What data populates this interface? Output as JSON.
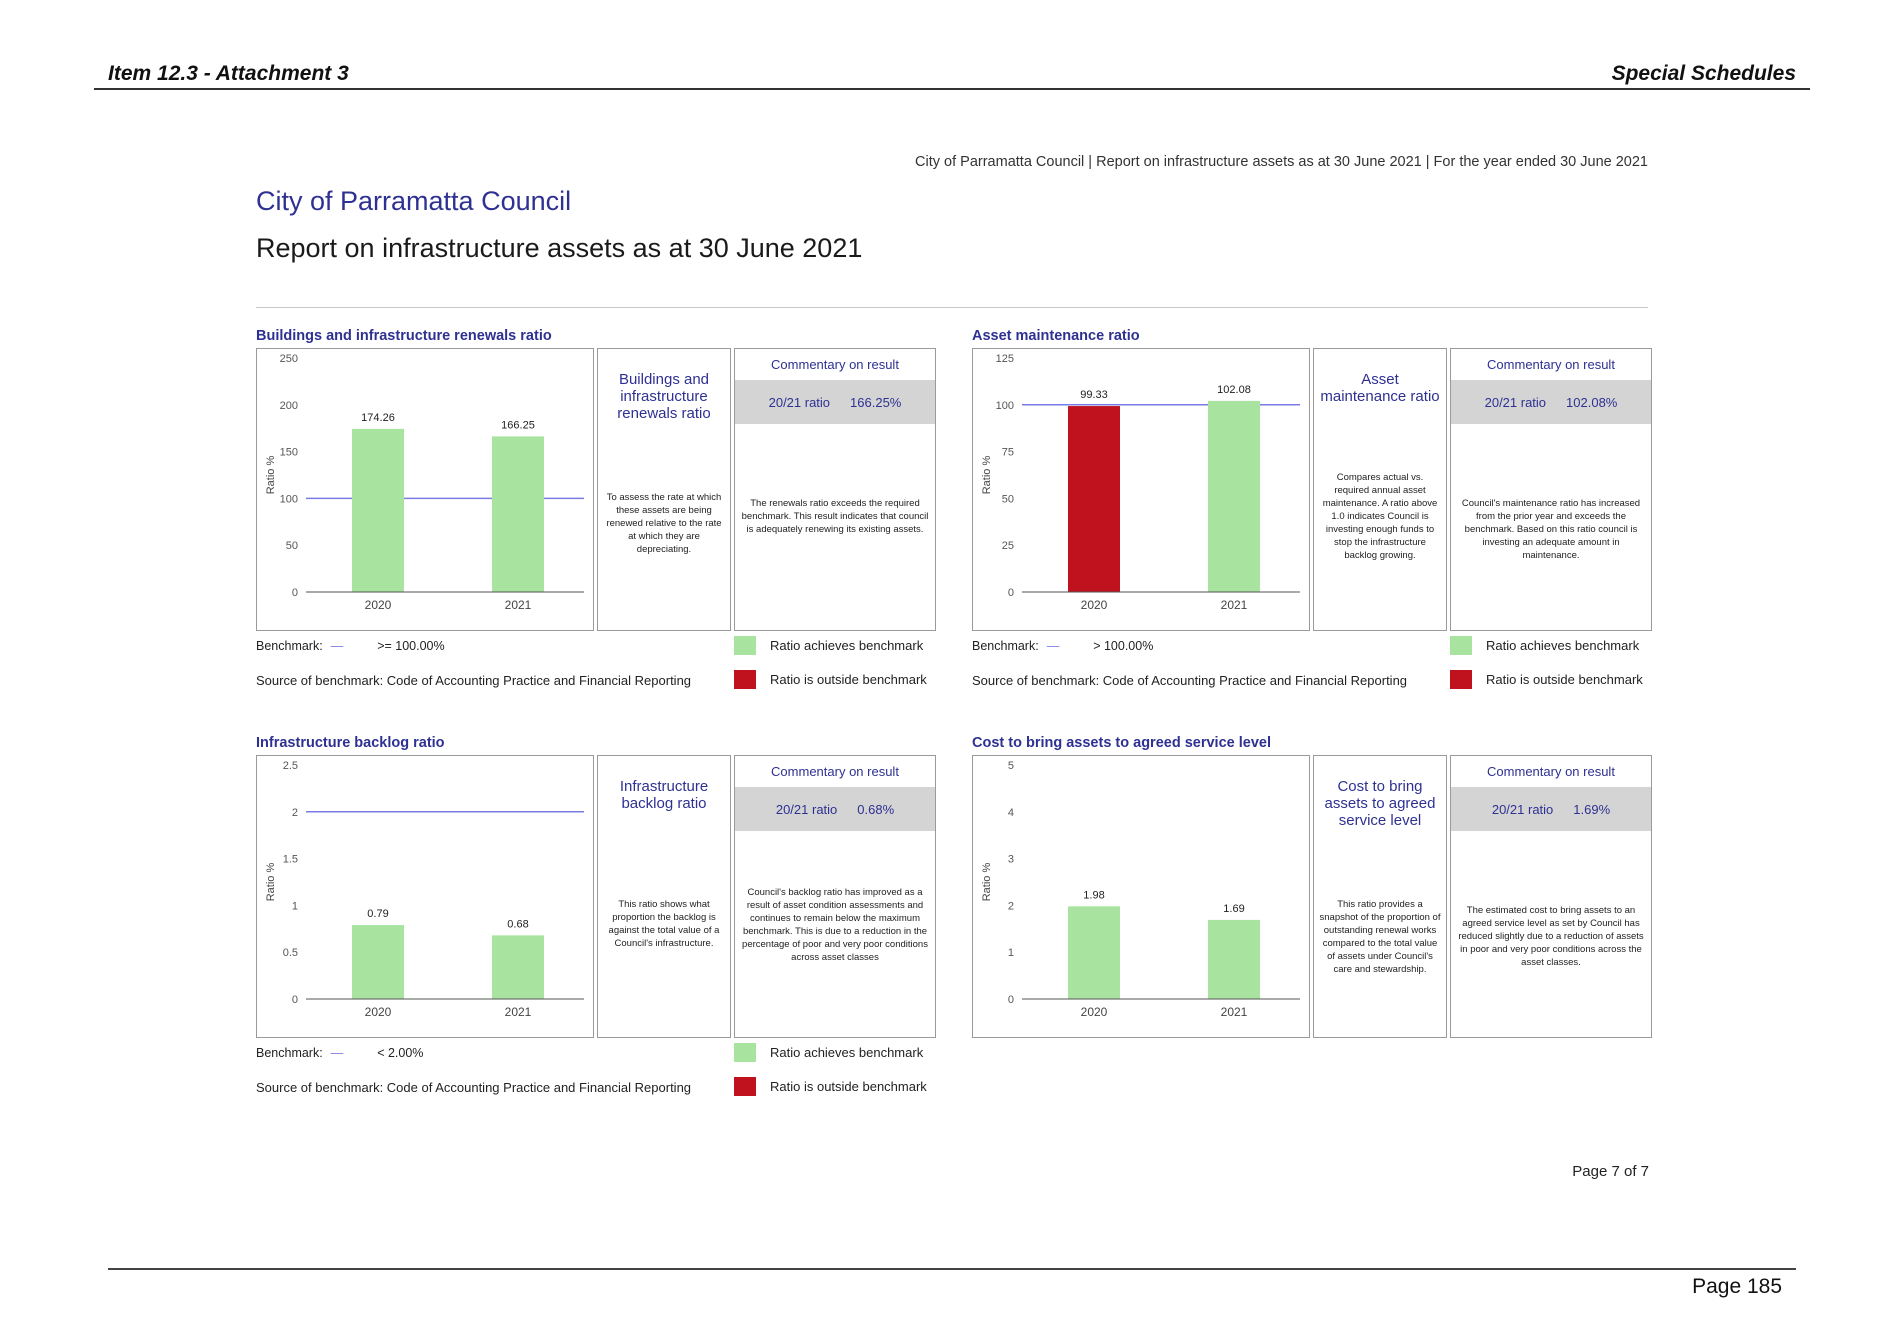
{
  "header": {
    "left": "Item 12.3 - Attachment 3",
    "right": "Special Schedules"
  },
  "running_head": "City of Parramatta Council | Report on infrastructure assets as at 30 June 2021 | For the year ended 30 June 2021",
  "title": {
    "org": "City of Parramatta Council",
    "report": "Report on infrastructure assets as at 30 June 2021"
  },
  "colors": {
    "achieves": "#a8e4a0",
    "outside": "#c0111f",
    "benchmark_line": "#7b7be6",
    "accent": "#2e3192"
  },
  "legend": {
    "achieves": "Ratio achieves benchmark",
    "outside": "Ratio is outside benchmark"
  },
  "common": {
    "benchmark_label": "Benchmark:",
    "benchmark_dash": "—",
    "source": "Source of benchmark: Code of Accounting Practice and Financial Reporting",
    "commentary_head": "Commentary on result",
    "ratio_label": "20/21 ratio",
    "ylabel": "Ratio %"
  },
  "panels": [
    {
      "title": "Buildings and infrastructure renewals ratio",
      "name": "Buildings and infrastructure renewals ratio",
      "description": "To assess the rate at which these assets are being renewed relative to the rate at which they are depreciating.",
      "ratio_value": "166.25%",
      "commentary": "The renewals ratio exceeds the required benchmark. This result indicates that council is adequately renewing its existing assets.",
      "benchmark_text": ">= 100.00%"
    },
    {
      "title": "Asset maintenance ratio",
      "name": "Asset maintenance ratio",
      "description": "Compares actual vs. required annual asset maintenance. A ratio above 1.0 indicates Council is investing enough funds to stop the infrastructure backlog growing.",
      "ratio_value": "102.08%",
      "commentary": "Council's maintenance ratio has increased from the prior year and exceeds the benchmark. Based on this ratio council is investing an adequate amount in maintenance.",
      "benchmark_text": "> 100.00%"
    },
    {
      "title": "Infrastructure backlog ratio",
      "name": "Infrastructure backlog ratio",
      "description": "This ratio shows what proportion the backlog is against the total value of a Council's infrastructure.",
      "ratio_value": "0.68%",
      "commentary": "Council's backlog ratio has improved as a result of asset condition assessments and continues to remain below the maximum benchmark. This is due to a reduction in the percentage of poor and very poor conditions across asset classes",
      "benchmark_text": "< 2.00%"
    },
    {
      "title": "Cost to bring assets to agreed service level",
      "name": "Cost to bring assets to agreed service level",
      "description": "This ratio provides a snapshot of the proportion of outstanding renewal works compared to the total value of assets under Council's care and stewardship.",
      "ratio_value": "1.69%",
      "commentary": "The estimated cost to bring assets to an agreed service level as set by Council has reduced slightly due to a reduction of assets in poor and very poor conditions across the asset classes."
    }
  ],
  "chart_data": [
    {
      "type": "bar",
      "title": "Buildings and infrastructure renewals ratio",
      "ylabel": "Ratio %",
      "categories": [
        "2020",
        "2021"
      ],
      "values": [
        174.26,
        166.25
      ],
      "ylim": [
        0,
        250
      ],
      "yticks": [
        0,
        50,
        100,
        150,
        200,
        250
      ],
      "benchmark": 100,
      "colors": [
        "#a8e4a0",
        "#a8e4a0"
      ]
    },
    {
      "type": "bar",
      "title": "Asset maintenance ratio",
      "ylabel": "Ratio %",
      "categories": [
        "2020",
        "2021"
      ],
      "values": [
        99.33,
        102.08
      ],
      "ylim": [
        0,
        125
      ],
      "yticks": [
        0,
        25,
        50,
        75,
        100,
        125
      ],
      "benchmark": 100,
      "colors": [
        "#c0111f",
        "#a8e4a0"
      ]
    },
    {
      "type": "bar",
      "title": "Infrastructure backlog ratio",
      "ylabel": "Ratio %",
      "categories": [
        "2020",
        "2021"
      ],
      "values": [
        0.79,
        0.68
      ],
      "ylim": [
        0,
        2.5
      ],
      "yticks": [
        0,
        0.5,
        1,
        1.5,
        2,
        2.5
      ],
      "benchmark": 2,
      "colors": [
        "#a8e4a0",
        "#a8e4a0"
      ]
    },
    {
      "type": "bar",
      "title": "Cost to bring assets to agreed service level",
      "ylabel": "Ratio %",
      "categories": [
        "2020",
        "2021"
      ],
      "values": [
        1.98,
        1.69
      ],
      "ylim": [
        0,
        5
      ],
      "yticks": [
        0,
        1,
        2,
        3,
        4,
        5
      ],
      "colors": [
        "#a8e4a0",
        "#a8e4a0"
      ]
    }
  ],
  "footer": {
    "page_of": "Page 7 of 7",
    "page": "Page 185"
  }
}
